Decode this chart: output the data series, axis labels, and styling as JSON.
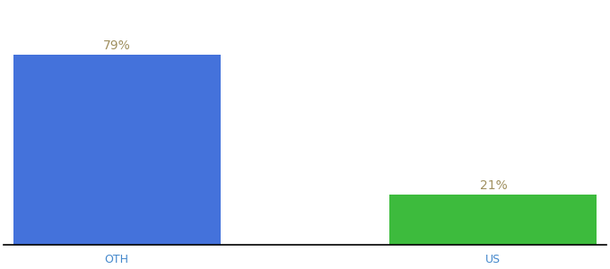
{
  "categories": [
    "OTH",
    "US"
  ],
  "values": [
    79,
    21
  ],
  "bar_colors": [
    "#4472db",
    "#3dbb3d"
  ],
  "label_color": "#a09060",
  "label_fontsize": 10,
  "tick_fontsize": 9,
  "tick_color": "#4488cc",
  "background_color": "#ffffff",
  "ylim": [
    0,
    100
  ],
  "bar_width": 0.55,
  "labels": [
    "79%",
    "21%"
  ],
  "xlim": [
    -0.3,
    1.3
  ]
}
